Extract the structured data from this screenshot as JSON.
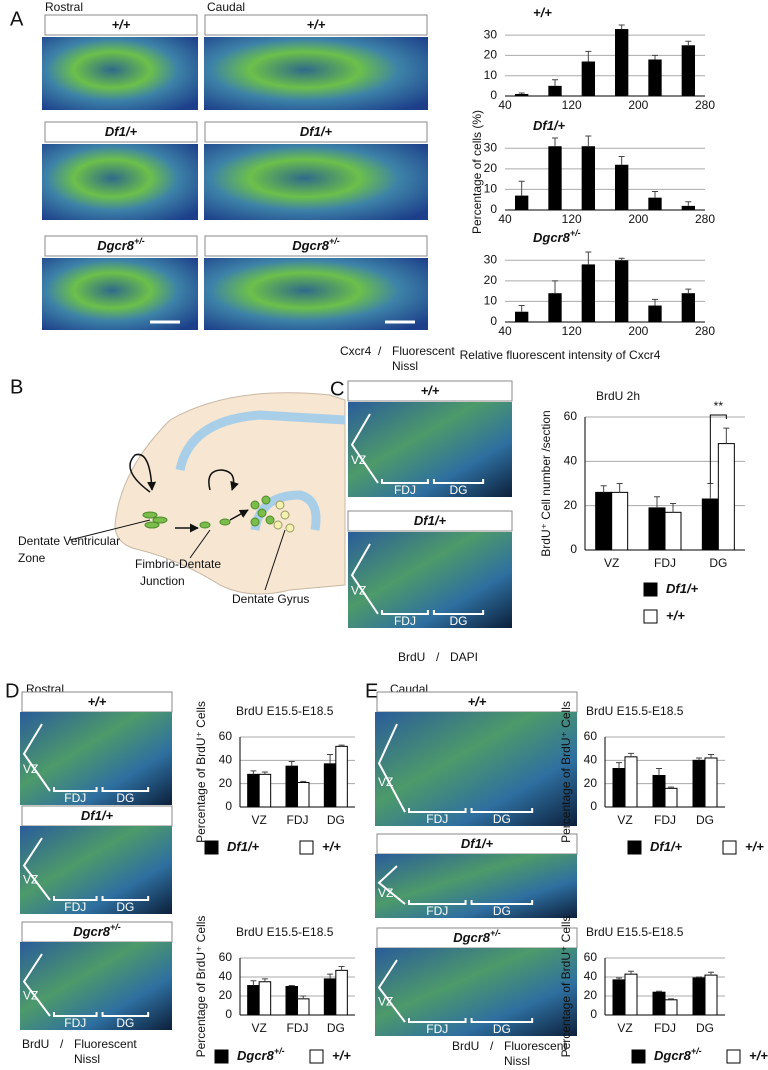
{
  "panels": {
    "A": {
      "letter": "A",
      "columns": [
        "Rostral",
        "Caudal"
      ],
      "genotypes": [
        {
          "text": "+/+"
        },
        {
          "text": "Df1/+"
        },
        {
          "text": "Dgcr8",
          "sup": "+/-"
        }
      ],
      "stain": "Cxcr4",
      "slash": "/",
      "counterstain": [
        "Fluorescent",
        "Nissl"
      ],
      "ylabel": "Percentage  of cells  (%)",
      "xlabel": "Relative fluorescent intensity of Cxcr4"
    },
    "B": {
      "letter": "B",
      "labels": [
        [
          "Dentate Ventricular",
          "Zone"
        ],
        [
          "Fimbrio-Dentate",
          "Junction"
        ],
        [
          "Dentate Gyrus"
        ]
      ]
    },
    "C": {
      "letter": "C",
      "genotypes": [
        {
          "text": "+/+"
        },
        {
          "text": "Df1/+"
        }
      ],
      "regions": [
        "VZ",
        "FDJ",
        "DG"
      ],
      "stain": "BrdU",
      "slash": "/",
      "counterstain": [
        "DAPI"
      ]
    },
    "D": {
      "letter": "D",
      "region": "Rostral",
      "genotypes": [
        {
          "text": "+/+"
        },
        {
          "text": "Df1/+"
        },
        {
          "text": "Dgcr8",
          "sup": "+/-"
        }
      ],
      "regions": [
        "VZ",
        "FDJ",
        "DG"
      ],
      "stain": "BrdU",
      "slash": "/",
      "counterstain": [
        "Fluorescent",
        "Nissl"
      ]
    },
    "E": {
      "letter": "E",
      "region": "Caudal",
      "genotypes": [
        {
          "text": "+/+"
        },
        {
          "text": "Df1/+"
        },
        {
          "text": "Dgcr8",
          "sup": "+/-"
        }
      ],
      "regions": [
        "VZ",
        "FDJ",
        "DG"
      ],
      "stain": "BrdU",
      "slash": "/",
      "counterstain": [
        "Fluorescent",
        "Nissl"
      ]
    }
  },
  "chart_data": [
    {
      "type": "histogram",
      "title": "+/+",
      "bins": [
        40,
        80,
        120,
        160,
        200,
        240,
        280
      ],
      "values": [
        1,
        5,
        17,
        33,
        18,
        25
      ],
      "errors": [
        0.5,
        3,
        5,
        2,
        2,
        2
      ],
      "color": "#000000",
      "xlim": [
        40,
        280
      ],
      "xticks": [
        40,
        120,
        200,
        280
      ],
      "ylim": [
        0,
        35
      ],
      "yticks": [
        0,
        10,
        20,
        30
      ],
      "grid": true
    },
    {
      "type": "histogram",
      "title": "Df1/+",
      "bins": [
        40,
        80,
        120,
        160,
        200,
        240,
        280
      ],
      "values": [
        7,
        31,
        31,
        22,
        6,
        2
      ],
      "errors": [
        7,
        4,
        5,
        4,
        3,
        2
      ],
      "color": "#000000",
      "xlim": [
        40,
        280
      ],
      "xticks": [
        40,
        120,
        200,
        280
      ],
      "ylim": [
        0,
        35
      ],
      "yticks": [
        0,
        10,
        20,
        30
      ],
      "grid": true
    },
    {
      "type": "histogram",
      "title": "Dgcr8",
      "title_sup": "+/-",
      "bins": [
        40,
        80,
        120,
        160,
        200,
        240,
        280
      ],
      "values": [
        5,
        14,
        28,
        30,
        8,
        14
      ],
      "errors": [
        3,
        6,
        6,
        1,
        3,
        2
      ],
      "color": "#000000",
      "xlim": [
        40,
        280
      ],
      "xticks": [
        40,
        120,
        200,
        280
      ],
      "ylim": [
        0,
        35
      ],
      "yticks": [
        0,
        10,
        20,
        30
      ],
      "grid": true
    },
    {
      "type": "bar",
      "title": "BrdU 2h",
      "ylabel": "BrdU⁺ Cell number /section",
      "categories": [
        "VZ",
        "FDJ",
        "DG"
      ],
      "series": [
        {
          "name": "Df1/+",
          "color": "#000000",
          "values": [
            26,
            19,
            23
          ],
          "errors": [
            3,
            5,
            7
          ]
        },
        {
          "name": "+/+",
          "color": "#ffffff",
          "values": [
            26,
            17,
            48
          ],
          "errors": [
            4,
            4,
            7
          ]
        }
      ],
      "annotation": "**",
      "ylim": [
        0,
        60
      ],
      "yticks": [
        0,
        20,
        40,
        60
      ],
      "grid": true
    },
    {
      "type": "bar",
      "title": "BrdU E15.5-E18.5",
      "ylabel": "Percentage of BrdU⁺ Cells",
      "categories": [
        "VZ",
        "FDJ",
        "DG"
      ],
      "series": [
        {
          "name": "Df1/+",
          "color": "#000000",
          "values": [
            28,
            35,
            37
          ],
          "errors": [
            3,
            4,
            8
          ]
        },
        {
          "name": "+/+",
          "color": "#ffffff",
          "values": [
            28,
            21,
            52
          ],
          "errors": [
            2,
            1,
            1
          ]
        }
      ],
      "ylim": [
        0,
        60
      ],
      "yticks": [
        0,
        20,
        40,
        60
      ],
      "grid": true
    },
    {
      "type": "bar",
      "title": "BrdU E15.5-E18.5",
      "ylabel": "Percentage of BrdU⁺ Cells",
      "categories": [
        "VZ",
        "FDJ",
        "DG"
      ],
      "series": [
        {
          "name": "Dgcr8",
          "name_sup": "+/-",
          "color": "#000000",
          "values": [
            31,
            30,
            38
          ],
          "errors": [
            5,
            1,
            5
          ]
        },
        {
          "name": "+/+",
          "color": "#ffffff",
          "values": [
            35,
            17,
            47
          ],
          "errors": [
            3,
            3,
            4
          ]
        }
      ],
      "ylim": [
        0,
        60
      ],
      "yticks": [
        0,
        20,
        40,
        60
      ],
      "grid": true
    },
    {
      "type": "bar",
      "title": "BrdU E15.5-E18.5",
      "ylabel": "Percentage of BrdU⁺ Cells",
      "categories": [
        "VZ",
        "FDJ",
        "DG"
      ],
      "series": [
        {
          "name": "Df1/+",
          "color": "#000000",
          "values": [
            33,
            27,
            40
          ],
          "errors": [
            5,
            6,
            2
          ]
        },
        {
          "name": "+/+",
          "color": "#ffffff",
          "values": [
            43,
            16,
            42
          ],
          "errors": [
            3,
            1,
            3
          ]
        }
      ],
      "ylim": [
        0,
        60
      ],
      "yticks": [
        0,
        20,
        40,
        60
      ],
      "grid": true
    },
    {
      "type": "bar",
      "title": "BrdU E15.5-E18.5",
      "ylabel": "Percentage of BrdU⁺ Cells",
      "categories": [
        "VZ",
        "FDJ",
        "DG"
      ],
      "series": [
        {
          "name": "Dgcr8",
          "name_sup": "+/-",
          "color": "#000000",
          "values": [
            37,
            24,
            39
          ],
          "errors": [
            2,
            1,
            1
          ]
        },
        {
          "name": "+/+",
          "color": "#ffffff",
          "values": [
            43,
            16,
            42
          ],
          "errors": [
            3,
            1,
            3
          ]
        }
      ],
      "ylim": [
        0,
        60
      ],
      "yticks": [
        0,
        20,
        40,
        60
      ],
      "grid": true
    }
  ]
}
